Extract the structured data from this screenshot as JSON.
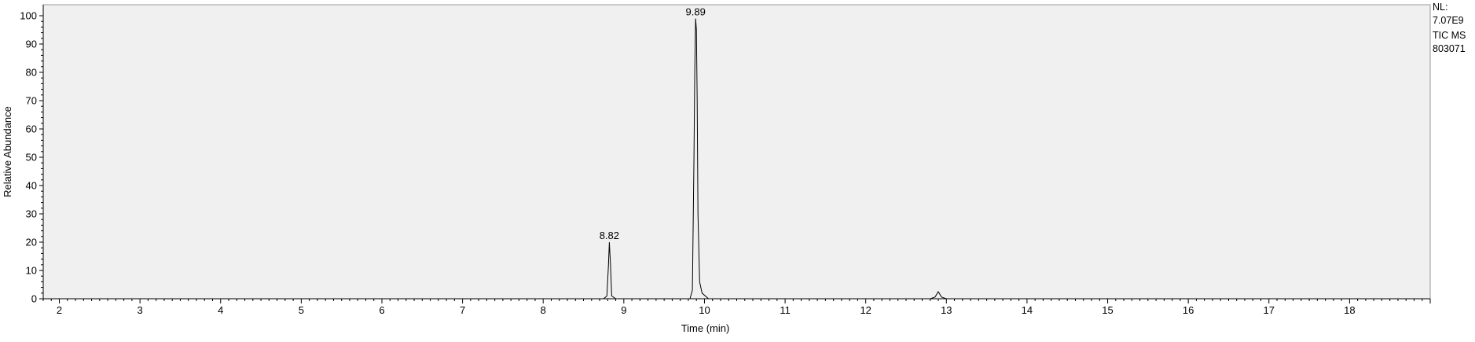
{
  "chart_data": {
    "type": "line",
    "title": "",
    "xlabel": "Time (min)",
    "ylabel": "Relative Abundance",
    "xlim": [
      1.8,
      19.0
    ],
    "ylim": [
      0,
      100
    ],
    "x_ticks": [
      2,
      3,
      4,
      5,
      6,
      7,
      8,
      9,
      10,
      11,
      12,
      13,
      14,
      15,
      16,
      17,
      18
    ],
    "y_ticks": [
      0,
      10,
      20,
      30,
      40,
      50,
      60,
      70,
      80,
      90,
      100
    ],
    "grid": false,
    "series": [
      {
        "x": [
          1.8,
          8.75,
          8.79,
          8.81,
          8.82,
          8.835,
          8.85,
          8.9,
          9.82,
          9.85,
          9.87,
          9.88,
          9.89,
          9.9,
          9.91,
          9.92,
          9.94,
          9.97,
          10.05,
          12.8,
          12.86,
          12.9,
          12.94,
          13.0,
          19.0
        ],
        "y": [
          0,
          0,
          1,
          12,
          20,
          12,
          1,
          0,
          0,
          3,
          50,
          80,
          99,
          95,
          70,
          30,
          6,
          2,
          0,
          0,
          0.6,
          2.5,
          0.6,
          0,
          0
        ]
      }
    ],
    "peak_labels": [
      {
        "x": 8.82,
        "y": 20,
        "text": "8.82"
      },
      {
        "x": 9.89,
        "y": 99,
        "text": "9.89"
      }
    ]
  },
  "side_info": {
    "nl_label": "NL:",
    "nl_value": "7.07E9",
    "trace_type": "TIC  MS",
    "sample_id": "803071"
  },
  "colors": {
    "plot_background": "#f0f0f0",
    "trace": "#000000",
    "axis": "#000000"
  }
}
